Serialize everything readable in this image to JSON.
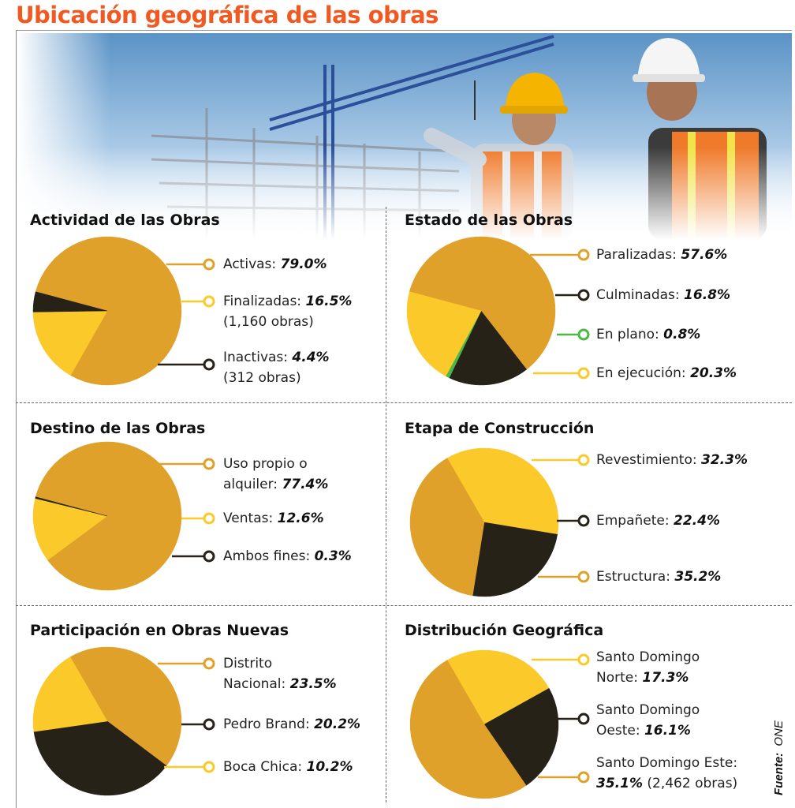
{
  "title": "Ubicación geográfica de las obras",
  "source": {
    "label": "Fuente:",
    "name": "ONE"
  },
  "colors": {
    "gold": "#e0a12a",
    "yellow": "#fcc92a",
    "dark": "#272218",
    "green": "#4db848",
    "title": "#f05a22"
  },
  "panels": [
    {
      "title": "Actividad de las Obras",
      "chart_data": {
        "type": "pie",
        "title": "Actividad de las Obras",
        "start": "left",
        "slices": [
          {
            "name": "Activas",
            "value": 79.0,
            "color": "#e0a12a",
            "label": "Activas:",
            "value_text": "79.0%",
            "extra": ""
          },
          {
            "name": "Finalizadas",
            "value": 16.5,
            "color": "#fcc92a",
            "label": "Finalizadas:",
            "value_text": "16.5%",
            "extra": "(1,160 obras)"
          },
          {
            "name": "Inactivas",
            "value": 4.4,
            "color": "#272218",
            "label": "Inactivas:",
            "value_text": "4.4%",
            "extra": "(312 obras)"
          }
        ]
      }
    },
    {
      "title": "Estado de las Obras",
      "chart_data": {
        "type": "pie",
        "title": "Estado de las Obras",
        "start": "left",
        "slices": [
          {
            "name": "Paralizadas",
            "value": 57.6,
            "color": "#e0a12a",
            "label": "Paralizadas:",
            "value_text": "57.6%",
            "extra": ""
          },
          {
            "name": "Culminadas",
            "value": 16.8,
            "color": "#272218",
            "label": "Culminadas:",
            "value_text": "16.8%",
            "extra": ""
          },
          {
            "name": "En plano",
            "value": 0.8,
            "color": "#4db848",
            "label": "En plano:",
            "value_text": "0.8%",
            "extra": ""
          },
          {
            "name": "En ejecución",
            "value": 20.3,
            "color": "#fcc92a",
            "label": "En ejecución:",
            "value_text": "20.3%",
            "extra": ""
          }
        ]
      }
    },
    {
      "title": "Destino de las Obras",
      "chart_data": {
        "type": "pie",
        "title": "Destino de las Obras",
        "start": "left",
        "slices": [
          {
            "name": "Uso propio o alquiler",
            "value": 77.4,
            "color": "#e0a12a",
            "label": "Uso propio o",
            "label2": "alquiler:",
            "value_text": "77.4%",
            "extra": ""
          },
          {
            "name": "Ventas",
            "value": 12.6,
            "color": "#fcc92a",
            "label": "Ventas:",
            "value_text": "12.6%",
            "extra": ""
          },
          {
            "name": "Ambos fines",
            "value": 0.3,
            "color": "#272218",
            "label": "Ambos fines:",
            "value_text": "0.3%",
            "extra": ""
          }
        ]
      }
    },
    {
      "title": "Etapa de Construcción",
      "chart_data": {
        "type": "pie",
        "title": "Etapa de Construcción",
        "start": "top",
        "slices": [
          {
            "name": "Revestimiento",
            "value": 32.3,
            "color": "#fcc92a",
            "label": "Revestimiento:",
            "value_text": "32.3%",
            "extra": ""
          },
          {
            "name": "Empañete",
            "value": 22.4,
            "color": "#272218",
            "label": "Empañete:",
            "value_text": "22.4%",
            "extra": ""
          },
          {
            "name": "Estructura",
            "value": 35.2,
            "color": "#e0a12a",
            "label": "Estructura:",
            "value_text": "35.2%",
            "extra": ""
          }
        ]
      }
    },
    {
      "title": "Participación en Obras Nuevas",
      "chart_data": {
        "type": "pie",
        "title": "Participación en Obras Nuevas",
        "start": "top",
        "slices": [
          {
            "name": "Distrito Nacional",
            "value": 23.5,
            "color": "#e0a12a",
            "label": "Distrito",
            "label2": "Nacional:",
            "value_text": "23.5%",
            "extra": ""
          },
          {
            "name": "Pedro Brand",
            "value": 20.2,
            "color": "#272218",
            "label": "Pedro Brand:",
            "value_text": "20.2%",
            "extra": ""
          },
          {
            "name": "Boca Chica",
            "value": 10.2,
            "color": "#fcc92a",
            "label": "Boca Chica:",
            "value_text": "10.2%",
            "extra": ""
          }
        ]
      }
    },
    {
      "title": "Distribución Geográfica",
      "chart_data": {
        "type": "pie",
        "title": "Distribución Geográfica",
        "start": "top",
        "slices": [
          {
            "name": "Santo Domingo Norte",
            "value": 17.3,
            "color": "#fcc92a",
            "label": "Santo Domingo",
            "label2": "Norte:",
            "value_text": "17.3%",
            "extra": ""
          },
          {
            "name": "Santo Domingo Oeste",
            "value": 16.1,
            "color": "#272218",
            "label": "Santo Domingo",
            "label2": "Oeste:",
            "value_text": "16.1%",
            "extra": ""
          },
          {
            "name": "Santo Domingo Este",
            "value": 35.1,
            "color": "#e0a12a",
            "label": "Santo Domingo Este:",
            "value_text": "35.1%",
            "extra": "(2,462 obras)"
          }
        ]
      }
    }
  ]
}
